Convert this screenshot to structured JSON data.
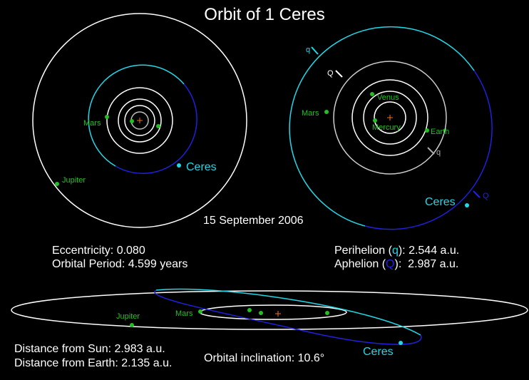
{
  "title": "Orbit of 1 Ceres",
  "date": "15 September 2006",
  "top_view": {
    "mars": "Mars",
    "jupiter": "Jupiter",
    "ceres": "Ceres"
  },
  "perihelion_view": {
    "q_outer": "q",
    "Q_inner": "Q",
    "venus": "Venus",
    "mercury": "Mercury",
    "earth": "Earth",
    "mars": "Mars",
    "q_earth": "q",
    "ceres": "Ceres",
    "Q_ceres": "Q"
  },
  "elements": {
    "eccentricity": "Eccentricity: 0.080",
    "period": "Orbital Period: 4.599 years",
    "perihelion": [
      "Perihelion (",
      "q",
      "): 2.544 a.u."
    ],
    "aphelion": [
      "Aphelion (",
      "Q",
      "):  2.987 a.u."
    ]
  },
  "side_view": {
    "jupiter": "Jupiter",
    "mars": "Mars",
    "ceres": "Ceres"
  },
  "distances": {
    "sun": "Distance from Sun: 2.983 a.u.",
    "earth": "Distance from Earth: 2.135 a.u.",
    "inclination": "Orbital inclination: 10.6°"
  }
}
